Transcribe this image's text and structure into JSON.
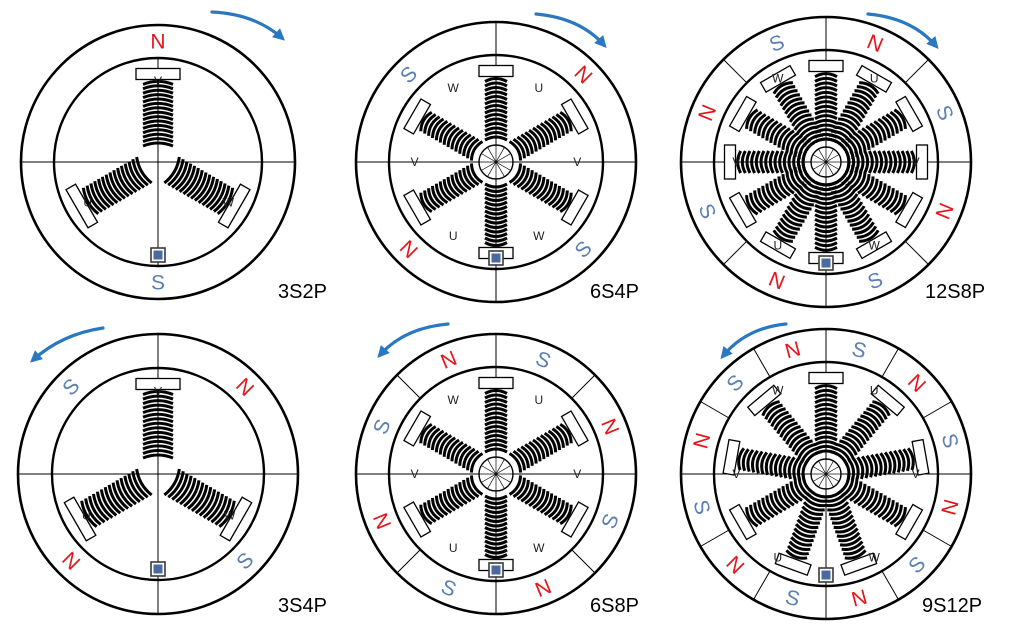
{
  "colors": {
    "north": "#e8141c",
    "south": "#5a7fb5",
    "arrow": "#2a78c2",
    "sensor_outer": "#3a3a3a",
    "sensor_inner": "#4a6aa0",
    "line": "#000000"
  },
  "motors": [
    {
      "label": "3S2P",
      "rotation": "clockwise",
      "slots": 3,
      "poles": [
        "N",
        "S"
      ],
      "phase_labels": [
        "V",
        "W",
        "U"
      ]
    },
    {
      "label": "6S4P",
      "rotation": "clockwise",
      "slots": 6,
      "poles": [
        "N",
        "S",
        "N",
        "S"
      ],
      "phase_labels": [
        "U",
        "V",
        "W",
        "U",
        "V",
        "W"
      ]
    },
    {
      "label": "12S8P",
      "rotation": "clockwise",
      "slots": 12,
      "poles": [
        "N",
        "S",
        "N",
        "S",
        "N",
        "S",
        "N",
        "S"
      ],
      "phase_labels": [
        "U",
        "V",
        "W",
        "U",
        "V",
        "W"
      ]
    },
    {
      "label": "3S4P",
      "rotation": "counterclockwise",
      "slots": 3,
      "poles": [
        "N",
        "S",
        "N",
        "S"
      ],
      "phase_labels": [
        "V",
        "W",
        "U"
      ]
    },
    {
      "label": "6S8P",
      "rotation": "counterclockwise",
      "slots": 6,
      "poles": [
        "S",
        "N",
        "S",
        "N",
        "S",
        "N",
        "S",
        "N"
      ],
      "phase_labels": [
        "U",
        "V",
        "W",
        "U",
        "V",
        "W"
      ]
    },
    {
      "label": "9S12P",
      "rotation": "counterclockwise",
      "slots": 9,
      "poles": [
        "S",
        "N",
        "S",
        "N",
        "S",
        "N",
        "S",
        "N",
        "S",
        "N",
        "S",
        "N"
      ],
      "phase_labels": [
        "U",
        "V",
        "W",
        "U",
        "V",
        "W"
      ]
    }
  ]
}
